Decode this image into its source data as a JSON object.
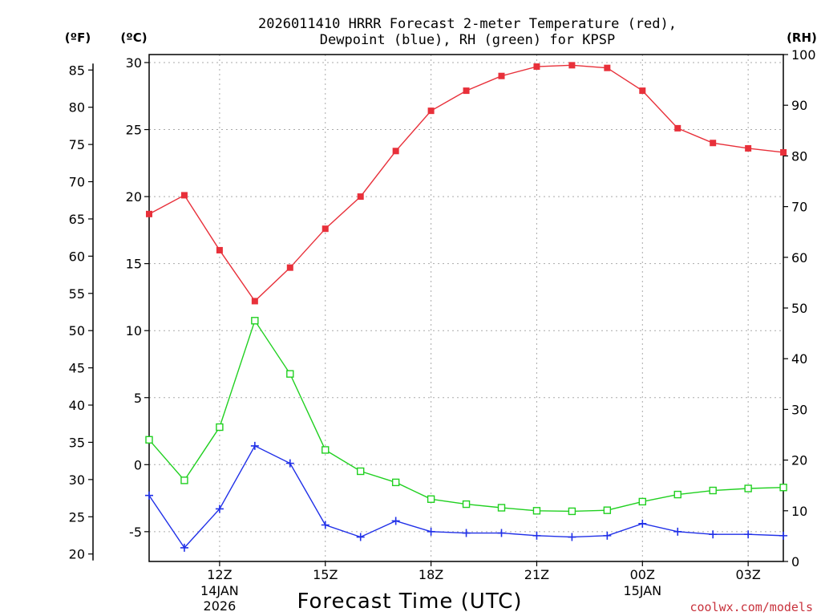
{
  "chart_data": {
    "type": "line",
    "title_line1": "2026011410 HRRR Forecast 2-meter Temperature (red),",
    "title_line2": "Dewpoint (blue), RH (green) for KPSP",
    "xlabel": "Forecast Time (UTC)",
    "credit": "coolwx.com/models",
    "units": {
      "fahrenheit": "(ºF)",
      "celsius": "(ºC)",
      "rh": "(RH)"
    },
    "left_c_axis": {
      "ticks": [
        30,
        25,
        20,
        15,
        10,
        5,
        0,
        -5
      ],
      "range": [
        -7.2,
        30.6
      ]
    },
    "left_f_axis": {
      "ticks": [
        85,
        80,
        75,
        70,
        65,
        60,
        55,
        50,
        45,
        40,
        35,
        30,
        25,
        20
      ]
    },
    "right_rh_axis": {
      "ticks": [
        100,
        90,
        80,
        70,
        60,
        50,
        40,
        30,
        20,
        10,
        0
      ],
      "range": [
        0,
        100
      ]
    },
    "x_ticks": [
      {
        "label": "12Z",
        "sub1": "14JAN",
        "sub2": "2026",
        "hour_index": 2
      },
      {
        "label": "15Z",
        "sub1": "",
        "sub2": "",
        "hour_index": 5
      },
      {
        "label": "18Z",
        "sub1": "",
        "sub2": "",
        "hour_index": 8
      },
      {
        "label": "21Z",
        "sub1": "",
        "sub2": "",
        "hour_index": 11
      },
      {
        "label": "00Z",
        "sub1": "15JAN",
        "sub2": "",
        "hour_index": 14
      },
      {
        "label": "03Z",
        "sub1": "",
        "sub2": "",
        "hour_index": 17
      }
    ],
    "x_hours": [
      "10Z",
      "11Z",
      "12Z",
      "13Z",
      "14Z",
      "15Z",
      "16Z",
      "17Z",
      "18Z",
      "19Z",
      "20Z",
      "21Z",
      "22Z",
      "23Z",
      "00Z",
      "01Z",
      "02Z",
      "03Z",
      "04Z"
    ],
    "series": [
      {
        "name": "Temperature",
        "color": "#e8303a",
        "axis": "C",
        "marker": "filled-square",
        "values": [
          18.7,
          20.1,
          16.0,
          12.2,
          14.7,
          17.6,
          20.0,
          23.4,
          26.4,
          27.9,
          29.0,
          29.7,
          29.8,
          29.6,
          27.9,
          25.1,
          24.0,
          23.6,
          23.3
        ]
      },
      {
        "name": "Dewpoint",
        "color": "#2030e8",
        "axis": "C",
        "marker": "plus",
        "values": [
          -2.3,
          -6.2,
          -3.3,
          1.4,
          0.1,
          -4.5,
          -5.4,
          -4.2,
          -5.0,
          -5.1,
          -5.1,
          -5.3,
          -5.4,
          -5.3,
          -4.4,
          -5.0,
          -5.2,
          -5.2,
          -5.3
        ]
      },
      {
        "name": "RH",
        "color": "#20d020",
        "axis": "RH",
        "marker": "open-square",
        "values": [
          24,
          16,
          26.5,
          47.5,
          37,
          22,
          17.8,
          15.6,
          12.3,
          11.3,
          10.6,
          10.0,
          9.9,
          10.1,
          11.8,
          13.2,
          14.0,
          14.4,
          14.6
        ]
      }
    ]
  }
}
